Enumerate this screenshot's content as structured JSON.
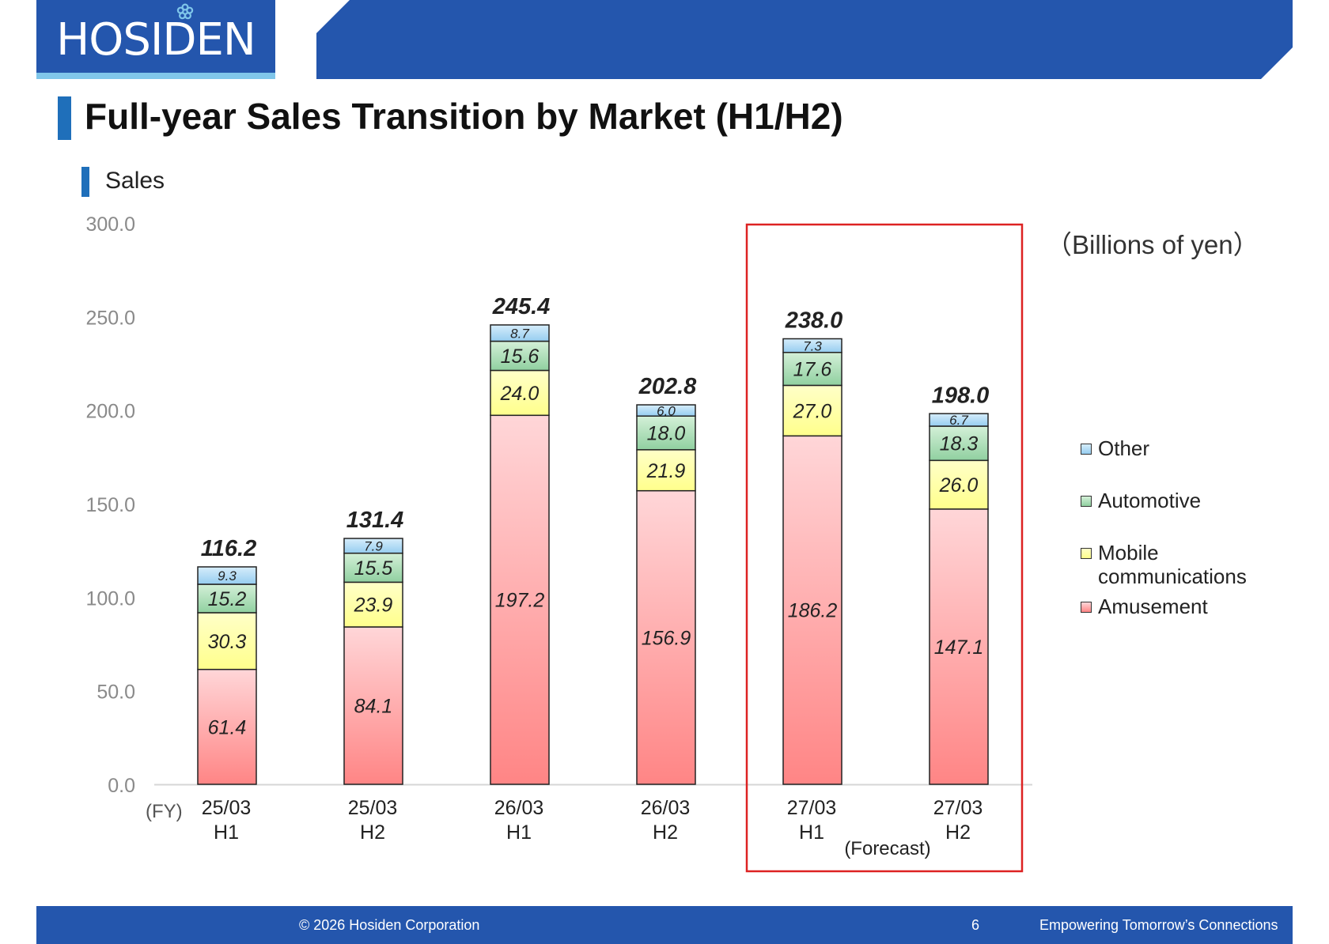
{
  "header": {
    "logo_text": "HOSIDEN"
  },
  "page": {
    "title": "Full-year Sales Transition by Market (H1/H2)",
    "subtitle": "Sales",
    "unit_note": "（Billions of yen）"
  },
  "footer": {
    "copyright": "© 2026 Hosiden Corporation",
    "page_number": "6",
    "tagline": "Empowering Tomorrow’s Connections"
  },
  "colors": {
    "brand_blue": "#2456ad",
    "accent_light_blue": "#7fc6ea",
    "forecast_box": "#dd2222"
  },
  "chart_data": {
    "type": "bar",
    "stacked": true,
    "x_prefix": "(FY)",
    "categories": [
      [
        "25/03",
        "H1"
      ],
      [
        "25/03",
        "H2"
      ],
      [
        "26/03",
        "H1"
      ],
      [
        "26/03",
        "H2"
      ],
      [
        "27/03",
        "H1"
      ],
      [
        "27/03",
        "H2"
      ]
    ],
    "series": [
      {
        "name": "Amusement",
        "values": [
          61.4,
          84.1,
          197.2,
          156.9,
          186.2,
          147.1
        ],
        "color_top": "#ffd6d8",
        "color_bottom": "#ff8585"
      },
      {
        "name": "Mobile communications",
        "values": [
          30.3,
          23.9,
          24.0,
          21.9,
          27.0,
          26.0
        ],
        "color_top": "#ffffc8",
        "color_bottom": "#ffff8c"
      },
      {
        "name": "Automotive",
        "values": [
          15.2,
          15.5,
          15.6,
          18.0,
          17.6,
          18.3
        ],
        "color_top": "#d4f0d8",
        "color_bottom": "#90d0a0"
      },
      {
        "name": "Other",
        "values": [
          9.3,
          7.9,
          8.7,
          6.0,
          7.3,
          6.7
        ],
        "color_top": "#d6edfb",
        "color_bottom": "#96cdf0"
      }
    ],
    "totals": [
      116.2,
      131.4,
      245.4,
      202.8,
      238.0,
      198.0
    ],
    "ylim": [
      0,
      300
    ],
    "yticks": [
      "0.0",
      "50.0",
      "100.0",
      "150.0",
      "200.0",
      "250.0",
      "300.0"
    ],
    "grid": false,
    "legend_position": "right",
    "forecast": {
      "label": "(Forecast)",
      "categories": [
        4,
        5
      ]
    }
  }
}
